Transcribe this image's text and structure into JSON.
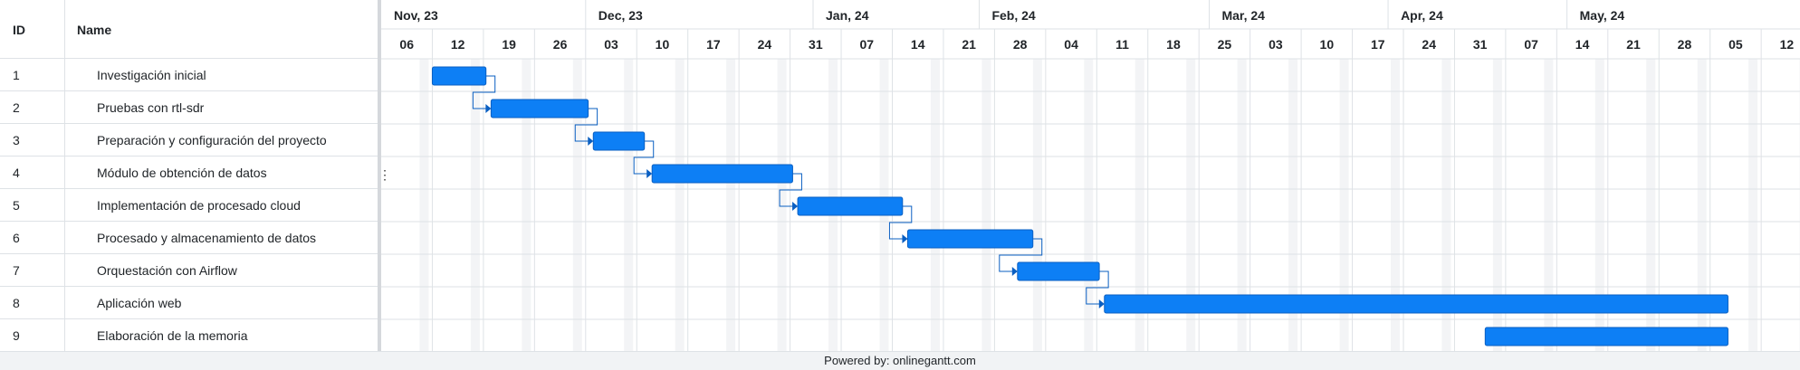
{
  "grid": {
    "id_header": "ID",
    "name_header": "Name",
    "resize_handle": "⋮"
  },
  "timeline": {
    "months": [
      "Nov, 23",
      "Dec, 23",
      "Jan, 24",
      "Feb, 24",
      "Mar, 24",
      "Apr, 24",
      "May, 24"
    ],
    "weeks": [
      "06",
      "12",
      "19",
      "26",
      "03",
      "10",
      "17",
      "24",
      "31",
      "07",
      "14",
      "21",
      "28",
      "04",
      "11",
      "18",
      "25",
      "03",
      "10",
      "17",
      "24",
      "31",
      "07",
      "14",
      "21",
      "28",
      "05",
      "12"
    ]
  },
  "tasks": [
    {
      "id": "1",
      "name": "Investigación inicial",
      "start_week": 1,
      "end_week": 2.05,
      "depends_on": null
    },
    {
      "id": "2",
      "name": "Pruebas con rtl-sdr",
      "start_week": 2.15,
      "end_week": 4.05,
      "depends_on": "1"
    },
    {
      "id": "3",
      "name": "Preparación y configuración del proyecto",
      "start_week": 4.15,
      "end_week": 5.15,
      "depends_on": "2"
    },
    {
      "id": "4",
      "name": "Módulo de obtención de datos",
      "start_week": 5.3,
      "end_week": 8.05,
      "depends_on": "3"
    },
    {
      "id": "5",
      "name": "Implementación de procesado cloud",
      "start_week": 8.15,
      "end_week": 10.2,
      "depends_on": "4"
    },
    {
      "id": "6",
      "name": "Procesado y almacenamiento de datos",
      "start_week": 10.3,
      "end_week": 12.75,
      "depends_on": "5"
    },
    {
      "id": "7",
      "name": "Orquestación con Airflow",
      "start_week": 12.45,
      "end_week": 14.05,
      "depends_on": "6"
    },
    {
      "id": "8",
      "name": "Aplicación web",
      "start_week": 14.15,
      "end_week": 26.35,
      "depends_on": "7"
    },
    {
      "id": "9",
      "name": "Elaboración de la memoria",
      "start_week": 21.6,
      "end_week": 26.35,
      "depends_on": null
    }
  ],
  "colors": {
    "bar": "#0d7ff5",
    "bar_border": "#0a5fc2",
    "connector": "#0a5fc2",
    "grid_line": "#dee2e6",
    "weekend_shade": "#f3f4f6"
  },
  "footer": {
    "text": "Powered by: onlinegantt.com"
  }
}
